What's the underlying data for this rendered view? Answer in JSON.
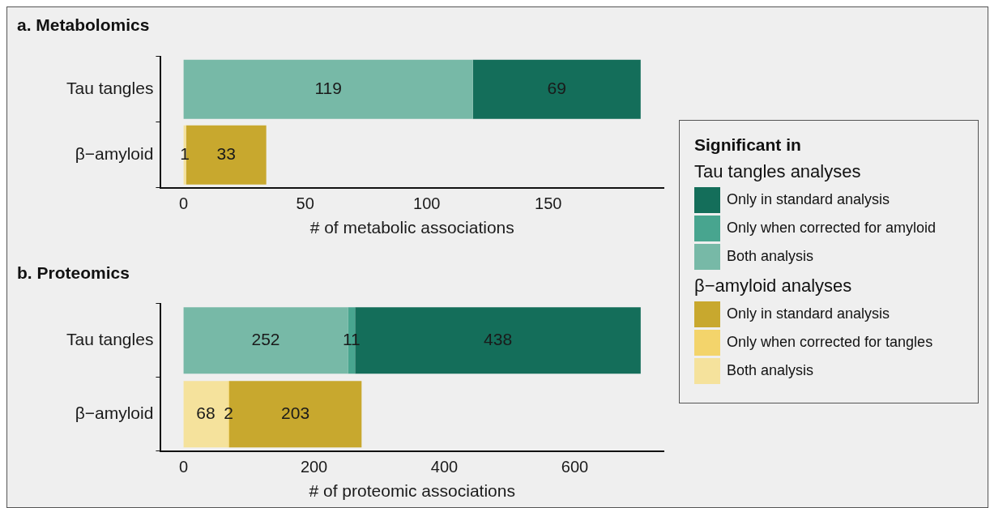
{
  "chart_data": [
    {
      "type": "bar",
      "title": "a. Metabolomics",
      "xlabel": "# of metabolic associations",
      "orientation": "horizontal",
      "stacked": true,
      "categories": [
        "Tau tangles",
        "β−amyloid"
      ],
      "series": [
        {
          "name": "Both analysis",
          "color": "#77b9a7",
          "values": [
            119,
            null
          ]
        },
        {
          "name": "Only when corrected for amyloid",
          "color": "#48a58f",
          "values": [
            null,
            null
          ]
        },
        {
          "name": "Only in standard analysis",
          "color": "#146e5a",
          "values": [
            69,
            null
          ]
        },
        {
          "name": "Both analysis",
          "color": "#f5e29c",
          "values": [
            null,
            1
          ]
        },
        {
          "name": "Only when corrected for tangles",
          "color": "#f3d46b",
          "values": [
            null,
            null
          ]
        },
        {
          "name": "Only in standard analysis",
          "color": "#c8a82e",
          "values": [
            null,
            33
          ]
        }
      ],
      "xlim": [
        -9.4,
        197.4
      ],
      "xticks": [
        0,
        50,
        100,
        150
      ],
      "data_labels": true,
      "grid": false,
      "legend": "right",
      "legend_title": "Significant in",
      "annotations": [
        "Tau tangles analyses",
        "β−amyloid analyses"
      ]
    },
    {
      "type": "bar",
      "title": "b. Proteomics",
      "xlabel": "# of proteomic associations",
      "orientation": "horizontal",
      "stacked": true,
      "categories": [
        "Tau tangles",
        "β−amyloid"
      ],
      "series": [
        {
          "color": "#77b9a7",
          "values": [
            252,
            null
          ]
        },
        {
          "color": "#48a58f",
          "values": [
            11,
            null
          ]
        },
        {
          "color": "#146e5a",
          "values": [
            438,
            null
          ]
        },
        {
          "color": "#f5e29c",
          "values": [
            null,
            68
          ]
        },
        {
          "color": "#f3d46b",
          "values": [
            null,
            2
          ]
        },
        {
          "color": "#c8a82e",
          "values": [
            null,
            203
          ]
        }
      ],
      "xlim": [
        -35,
        736
      ],
      "xticks": [
        0,
        200,
        400,
        600
      ],
      "data_labels": true,
      "grid": false
    }
  ]
}
